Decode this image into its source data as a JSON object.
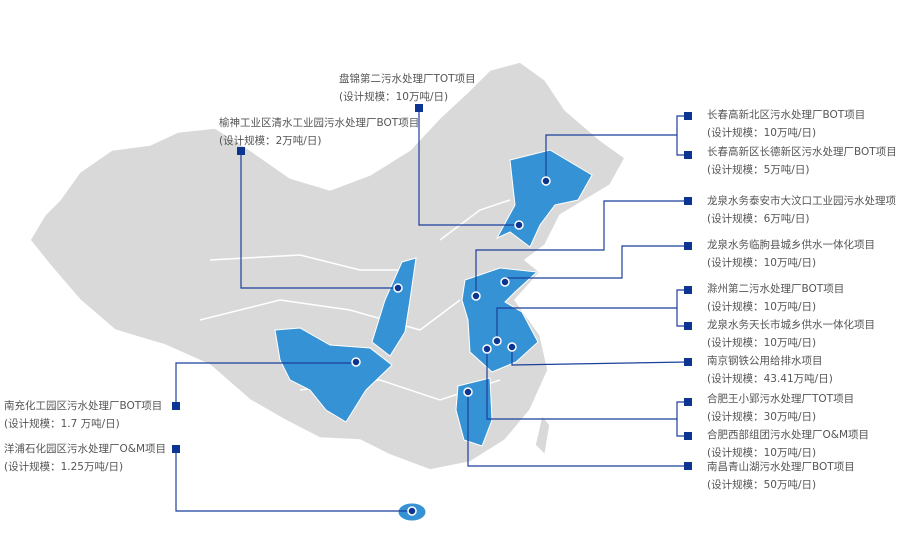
{
  "colors": {
    "land": "#d9d9d9",
    "highlight": "#3592d4",
    "line": "#1b3f9a",
    "marker": "#0c3591"
  },
  "projects": [
    {
      "name": "长春高新北区污水处理厂BOT项目",
      "scale": "(设计规模：10万吨/日)"
    },
    {
      "name": "长春高新区长德新区污水处理厂BOT项目",
      "scale": "(设计规模：5万吨/日)"
    },
    {
      "name": "龙泉水务泰安市大汶口工业园污水处理项",
      "scale": "(设计规模：6万吨/日)"
    },
    {
      "name": "龙泉水务临朐县城乡供水一体化项目",
      "scale": "(设计规模：10万吨/日)"
    },
    {
      "name": "滁州第二污水处理厂BOT项目",
      "scale": "(设计规模：10万吨/日)"
    },
    {
      "name": "龙泉水务天长市城乡供水一体化项目",
      "scale": "(设计规模：10万吨/日)"
    },
    {
      "name": "南京钢铁公用给排水项目",
      "scale": "(设计规模：43.41万吨/日)"
    },
    {
      "name": "合肥王小郢污水处理厂TOT项目",
      "scale": "(设计规模：30万吨/日)"
    },
    {
      "name": "合肥西部组团污水处理厂O&M项目",
      "scale": "(设计规模：10万吨/日)"
    },
    {
      "name": "南昌青山湖污水处理厂BOT项目",
      "scale": "(设计规模：50万吨/日)"
    },
    {
      "name": "盘锦第二污水处理厂TOT项目",
      "scale": "(设计规模：10万吨/日)"
    },
    {
      "name": "榆神工业区清水工业园污水处理厂BOT项目",
      "scale": "(设计规模：2万吨/日)"
    },
    {
      "name": "南充化工园区污水处理厂BOT项目",
      "scale": "(设计规模：1.7 万吨/日)"
    },
    {
      "name": "洋浦石化园区污水处理厂O&M项目",
      "scale": "(设计规模：1.25万吨/日)"
    }
  ]
}
